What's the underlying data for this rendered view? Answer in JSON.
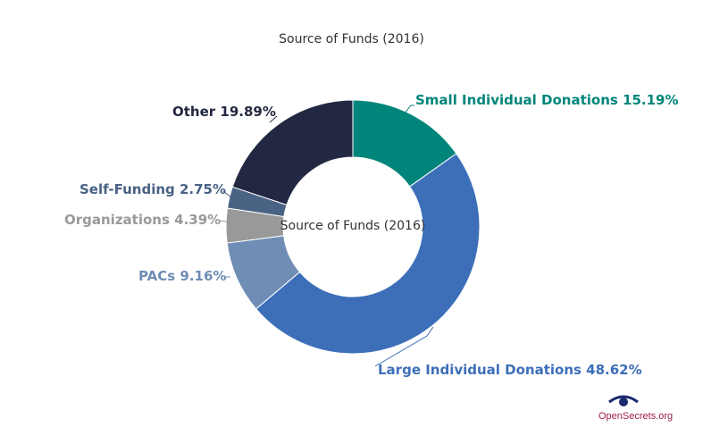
{
  "chart_data": {
    "type": "pie",
    "title": "Source of Funds (2016)",
    "center_label": "Source of Funds (2016)",
    "slices": [
      {
        "label": "Small Individual Donations",
        "value": 15.19,
        "text": "Small Individual Donations 15.19%",
        "color": "#00857a"
      },
      {
        "label": "Large Individual Donations",
        "value": 48.62,
        "text": "Large Individual Donations 48.62%",
        "color": "#3d6fb9"
      },
      {
        "label": "PACs",
        "value": 9.16,
        "text": "PACs 9.16%",
        "color": "#6f8db5"
      },
      {
        "label": "Organizations",
        "value": 4.39,
        "text": "Organizations 4.39%",
        "color": "#999999"
      },
      {
        "label": "Self-Funding",
        "value": 2.75,
        "text": "Self-Funding 2.75%",
        "color": "#4a6283"
      },
      {
        "label": "Other",
        "value": 19.89,
        "text": "Other 19.89%",
        "color": "#232842"
      }
    ]
  },
  "logo": {
    "text": "OpenSecrets.org"
  }
}
